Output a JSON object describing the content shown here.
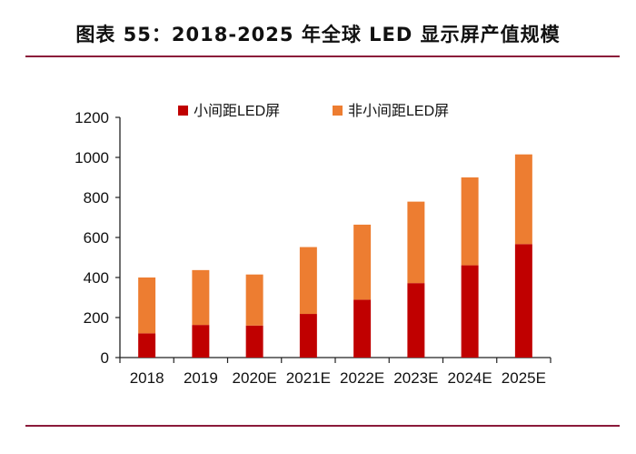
{
  "chart_data": {
    "type": "bar",
    "stacked": true,
    "title": "图表 55：2018-2025 年全球 LED 显示屏产值规模",
    "xlabel": "",
    "ylabel": "",
    "categories": [
      "2018",
      "2019",
      "2020E",
      "2021E",
      "2022E",
      "2023E",
      "2024E",
      "2025E"
    ],
    "series": [
      {
        "name": "小间距LED屏",
        "color": "#c00000",
        "values": [
          121,
          163,
          160,
          218,
          289,
          372,
          461,
          567
        ]
      },
      {
        "name": "非小间距LED屏",
        "color": "#ed7d31",
        "values": [
          279,
          274,
          255,
          334,
          375,
          407,
          439,
          448
        ]
      }
    ],
    "ylim": [
      0,
      1200
    ],
    "yticks": [
      0,
      200,
      400,
      600,
      800,
      1000,
      1200
    ],
    "grid": false,
    "legend": "top"
  }
}
